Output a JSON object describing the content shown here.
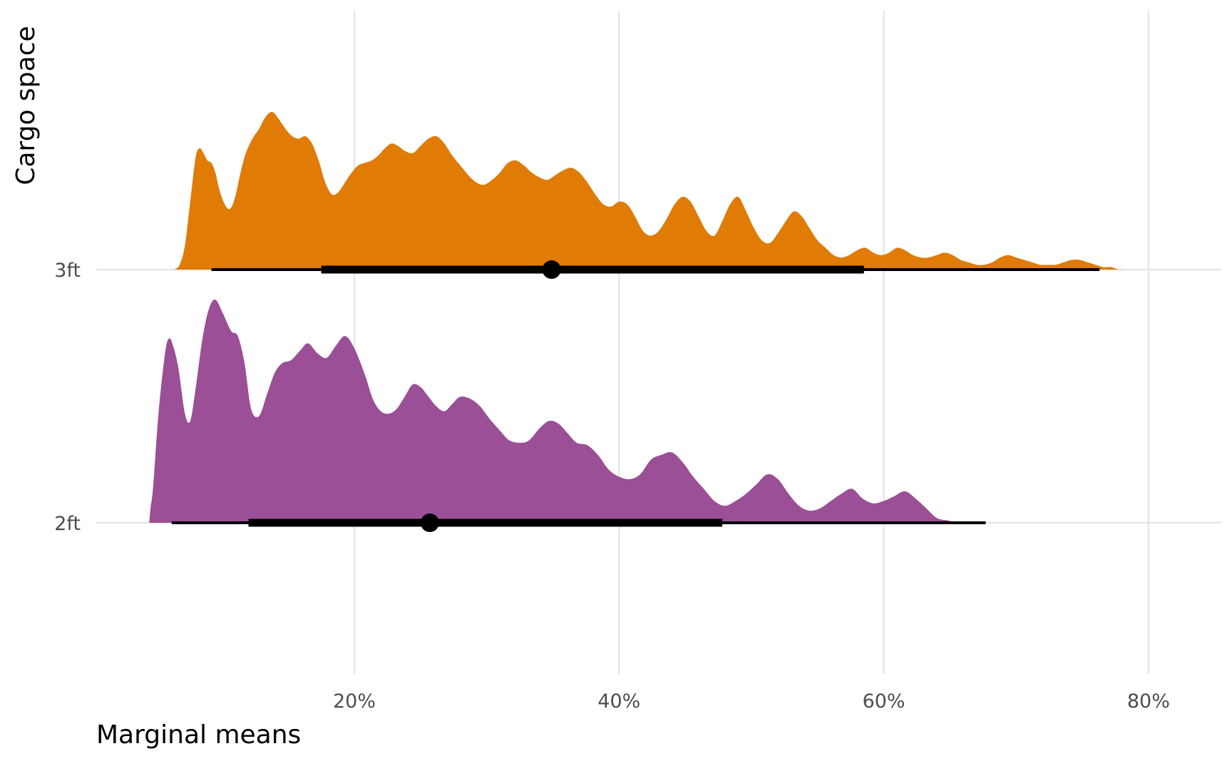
{
  "chart_data": {
    "type": "ridgeline",
    "title": "",
    "xlabel": "Marginal means",
    "ylabel": "Cargo space",
    "xlim": [
      0.005,
      0.855
    ],
    "x_ticks": [
      0.2,
      0.4,
      0.6,
      0.8
    ],
    "x_tick_labels": [
      "20%",
      "40%",
      "60%",
      "80%"
    ],
    "grid": true,
    "legend": "none",
    "categories": [
      "2ft",
      "3ft"
    ],
    "series": [
      {
        "category": "2ft",
        "color": "#9A4F96",
        "point_estimate": 0.257,
        "interval_66": [
          0.12,
          0.478
        ],
        "interval_95": [
          0.062,
          0.677
        ],
        "density_x": [
          0.045,
          0.046,
          0.048,
          0.052,
          0.057,
          0.06,
          0.063,
          0.067,
          0.072,
          0.076,
          0.08,
          0.085,
          0.09,
          0.095,
          0.101,
          0.107,
          0.112,
          0.117,
          0.122,
          0.128,
          0.134,
          0.14,
          0.146,
          0.152,
          0.159,
          0.165,
          0.172,
          0.179,
          0.186,
          0.193,
          0.2,
          0.208,
          0.214,
          0.22,
          0.226,
          0.232,
          0.238,
          0.244,
          0.25,
          0.256,
          0.262,
          0.268,
          0.274,
          0.28,
          0.288,
          0.295,
          0.302,
          0.31,
          0.317,
          0.325,
          0.332,
          0.34,
          0.347,
          0.354,
          0.361,
          0.368,
          0.376,
          0.384,
          0.392,
          0.4,
          0.408,
          0.416,
          0.424,
          0.432,
          0.44,
          0.448,
          0.456,
          0.464,
          0.472,
          0.48,
          0.488,
          0.496,
          0.504,
          0.512,
          0.52,
          0.528,
          0.536,
          0.544,
          0.552,
          0.56,
          0.568,
          0.576,
          0.584,
          0.592,
          0.6,
          0.608,
          0.616,
          0.624,
          0.632,
          0.64,
          0.648,
          0.656,
          0.664,
          0.672,
          0.68,
          0.688,
          0.696,
          0.704,
          0.712,
          0.72,
          0.73,
          0.74,
          0.748
        ],
        "density_y": [
          0.0,
          0.06,
          0.15,
          0.45,
          0.7,
          0.76,
          0.73,
          0.64,
          0.45,
          0.42,
          0.55,
          0.75,
          0.88,
          0.92,
          0.86,
          0.79,
          0.77,
          0.66,
          0.47,
          0.44,
          0.53,
          0.62,
          0.66,
          0.67,
          0.71,
          0.74,
          0.7,
          0.68,
          0.73,
          0.77,
          0.72,
          0.61,
          0.51,
          0.46,
          0.45,
          0.47,
          0.52,
          0.57,
          0.56,
          0.52,
          0.48,
          0.46,
          0.49,
          0.52,
          0.51,
          0.48,
          0.43,
          0.38,
          0.34,
          0.33,
          0.34,
          0.39,
          0.42,
          0.41,
          0.37,
          0.33,
          0.32,
          0.28,
          0.22,
          0.19,
          0.18,
          0.2,
          0.26,
          0.28,
          0.29,
          0.25,
          0.19,
          0.14,
          0.09,
          0.07,
          0.09,
          0.12,
          0.16,
          0.2,
          0.18,
          0.12,
          0.07,
          0.05,
          0.06,
          0.09,
          0.12,
          0.14,
          0.1,
          0.08,
          0.09,
          0.11,
          0.13,
          0.1,
          0.06,
          0.02,
          0.01,
          0.0,
          0.0,
          0.0,
          0.0,
          0.0,
          0.0,
          0.0,
          0.0,
          0.0,
          0.0,
          0.0,
          0.0
        ]
      },
      {
        "category": "3ft",
        "color": "#E07B06",
        "point_estimate": 0.349,
        "interval_66": [
          0.175,
          0.585
        ],
        "interval_95": [
          0.092,
          0.763
        ],
        "density_x": [
          0.064,
          0.068,
          0.072,
          0.076,
          0.08,
          0.083,
          0.086,
          0.089,
          0.092,
          0.095,
          0.098,
          0.102,
          0.106,
          0.11,
          0.114,
          0.118,
          0.123,
          0.128,
          0.133,
          0.138,
          0.143,
          0.148,
          0.153,
          0.158,
          0.163,
          0.168,
          0.173,
          0.178,
          0.183,
          0.188,
          0.193,
          0.198,
          0.203,
          0.208,
          0.213,
          0.218,
          0.223,
          0.228,
          0.233,
          0.238,
          0.244,
          0.25,
          0.256,
          0.262,
          0.268,
          0.274,
          0.28,
          0.286,
          0.292,
          0.298,
          0.304,
          0.31,
          0.316,
          0.322,
          0.328,
          0.334,
          0.34,
          0.346,
          0.352,
          0.358,
          0.364,
          0.37,
          0.376,
          0.382,
          0.388,
          0.394,
          0.4,
          0.406,
          0.412,
          0.418,
          0.424,
          0.43,
          0.436,
          0.442,
          0.448,
          0.454,
          0.46,
          0.466,
          0.472,
          0.478,
          0.484,
          0.49,
          0.496,
          0.502,
          0.508,
          0.514,
          0.52,
          0.526,
          0.532,
          0.538,
          0.544,
          0.55,
          0.556,
          0.562,
          0.568,
          0.574,
          0.58,
          0.586,
          0.592,
          0.598,
          0.604,
          0.61,
          0.616,
          0.622,
          0.628,
          0.634,
          0.64,
          0.646,
          0.652,
          0.658,
          0.664,
          0.67,
          0.676,
          0.682,
          0.688,
          0.694,
          0.7,
          0.706,
          0.712,
          0.718,
          0.724,
          0.73,
          0.736,
          0.742,
          0.748,
          0.754,
          0.76,
          0.766,
          0.772,
          0.778,
          0.784,
          0.79,
          0.796,
          0.802,
          0.808,
          0.814,
          0.818
        ],
        "density_y": [
          0.0,
          0.02,
          0.1,
          0.28,
          0.46,
          0.5,
          0.48,
          0.45,
          0.44,
          0.4,
          0.33,
          0.27,
          0.25,
          0.3,
          0.4,
          0.48,
          0.54,
          0.58,
          0.63,
          0.65,
          0.62,
          0.58,
          0.55,
          0.54,
          0.55,
          0.52,
          0.45,
          0.36,
          0.31,
          0.32,
          0.36,
          0.4,
          0.43,
          0.44,
          0.45,
          0.47,
          0.5,
          0.52,
          0.51,
          0.49,
          0.48,
          0.51,
          0.54,
          0.55,
          0.52,
          0.47,
          0.43,
          0.39,
          0.36,
          0.35,
          0.37,
          0.4,
          0.44,
          0.45,
          0.43,
          0.4,
          0.38,
          0.37,
          0.39,
          0.41,
          0.42,
          0.4,
          0.36,
          0.31,
          0.27,
          0.26,
          0.28,
          0.27,
          0.22,
          0.16,
          0.14,
          0.16,
          0.21,
          0.27,
          0.3,
          0.28,
          0.22,
          0.16,
          0.14,
          0.2,
          0.27,
          0.3,
          0.24,
          0.17,
          0.12,
          0.11,
          0.15,
          0.2,
          0.24,
          0.22,
          0.17,
          0.12,
          0.09,
          0.06,
          0.05,
          0.06,
          0.08,
          0.09,
          0.07,
          0.06,
          0.07,
          0.09,
          0.08,
          0.06,
          0.05,
          0.05,
          0.06,
          0.07,
          0.06,
          0.04,
          0.03,
          0.02,
          0.02,
          0.03,
          0.05,
          0.06,
          0.05,
          0.04,
          0.03,
          0.02,
          0.02,
          0.02,
          0.03,
          0.04,
          0.04,
          0.03,
          0.02,
          0.01,
          0.01,
          0.0,
          0.0,
          0.0,
          0.0,
          0.0,
          0.0,
          0.0,
          0.0
        ]
      }
    ]
  }
}
